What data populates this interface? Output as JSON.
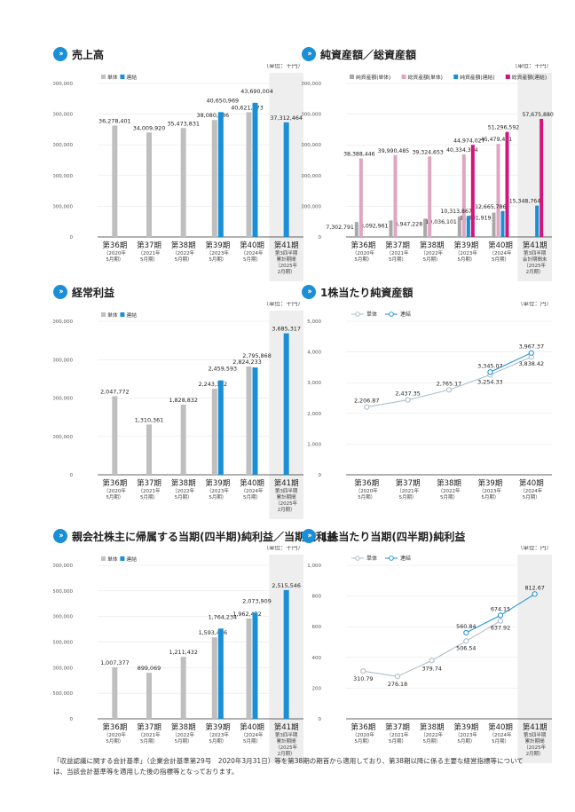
{
  "colors": {
    "single": "#bfbfbf",
    "consol": "#1a8fd6",
    "netassets_single": "#a8a8a8",
    "totalassets_single": "#e0a6c0",
    "netassets_consol": "#1a8fd6",
    "totalassets_consol": "#d4147a",
    "shade": "#eeeeee",
    "line": "#a7b9c6"
  },
  "footnote": "「収益認識に関する会計基準」（企業会計基準第29号　2020年3月31日）等を第38期の期首から適用しており、第38期以降に係る主要な経営指標等については、当該会計基準等を適用した後の指標等となっております。",
  "periods": [
    {
      "name": "第36期",
      "year": "（2020年",
      "month": "5月期）"
    },
    {
      "name": "第37期",
      "year": "（2021年",
      "month": "5月期）"
    },
    {
      "name": "第38期",
      "year": "（2022年",
      "month": "5月期）"
    },
    {
      "name": "第39期",
      "year": "（2023年",
      "month": "5月期）"
    },
    {
      "name": "第40期",
      "year": "（2024年",
      "month": "5月期）"
    }
  ],
  "extra_period_cumulative": {
    "name": "第41期",
    "lines": [
      "第3四半期",
      "累計期間",
      "（2025年",
      "2月期）"
    ]
  },
  "extra_period_end": {
    "name": "第41期",
    "lines": [
      "第3四半期",
      "会計期間末",
      "（2025年",
      "2月期）"
    ]
  },
  "chart_data": [
    {
      "id": "sales",
      "type": "bar",
      "title": "売上高",
      "unit": "（単位：千円）",
      "categories": [
        "第36期",
        "第37期",
        "第38期",
        "第39期",
        "第40期",
        "第41期"
      ],
      "yticks": [
        "50,000,000",
        "40,000,000",
        "30,000,000",
        "20,000,000",
        "10,000,000",
        "0"
      ],
      "ylim": [
        0,
        50000000
      ],
      "legend": [
        "単体",
        "連結"
      ],
      "series": [
        {
          "name": "単体",
          "values": [
            36278401,
            34009920,
            35473831,
            38080136,
            40621473,
            null
          ],
          "labels": [
            "36,278,401",
            "34,009,920",
            "35,473,831",
            "38,080,136",
            "40,621,473",
            ""
          ]
        },
        {
          "name": "連結",
          "values": [
            null,
            null,
            null,
            40650969,
            43690004,
            37312464
          ],
          "labels": [
            "",
            "",
            "",
            "40,650,969",
            "43,690,004",
            "37,312,464"
          ]
        }
      ]
    },
    {
      "id": "assets",
      "type": "bar",
      "title": "純資産額／総資産額",
      "unit": "（単位：千円）",
      "categories": [
        "第36期",
        "第37期",
        "第38期",
        "第39期",
        "第40期",
        "第41期"
      ],
      "yticks": [
        "75,000,000",
        "60,000,000",
        "45,000,000",
        "30,000,000",
        "15,000,000",
        "0"
      ],
      "ylim": [
        0,
        75000000
      ],
      "legend": [
        "純資産額(単体)",
        "総資産額(単体)",
        "純資産額(連結)",
        "総資産額(連結)"
      ],
      "series": [
        {
          "name": "純資産額(単体)",
          "values": [
            7302791,
            8092961,
            8947228,
            10036101,
            11901919,
            null
          ],
          "labels": [
            "7,302,791",
            "8,092,961",
            "8,947,228",
            "10,036,101",
            "11,901,919",
            ""
          ]
        },
        {
          "name": "総資産額(単体)",
          "values": [
            38388446,
            39990485,
            39324653,
            40334324,
            45479461,
            null
          ],
          "labels": [
            "38,388,446",
            "39,990,485",
            "39,324,653",
            "40,334,324",
            "45,479,461",
            ""
          ]
        },
        {
          "name": "純資産額(連結)",
          "values": [
            null,
            null,
            null,
            10313867,
            12665786,
            15348764
          ],
          "labels": [
            "",
            "",
            "",
            "10,313,867",
            "12,665,786",
            "15,348,764"
          ]
        },
        {
          "name": "総資産額(連結)",
          "values": [
            null,
            null,
            null,
            44974027,
            51296592,
            57675880
          ],
          "labels": [
            "",
            "",
            "",
            "44,974,027",
            "51,296,592",
            "57,675,880"
          ]
        }
      ]
    },
    {
      "id": "ordinary",
      "type": "bar",
      "title": "経常利益",
      "unit": "（単位：千円）",
      "categories": [
        "第36期",
        "第37期",
        "第38期",
        "第39期",
        "第40期",
        "第41期"
      ],
      "yticks": [
        "4,000,000",
        "3,000,000",
        "2,000,000",
        "1,000,000",
        "0"
      ],
      "ylim": [
        0,
        4000000
      ],
      "legend": [
        "単体",
        "連結"
      ],
      "series": [
        {
          "name": "単体",
          "values": [
            2047772,
            1310361,
            1828832,
            2243132,
            2824233,
            null
          ],
          "labels": [
            "2,047,772",
            "1,310,361",
            "1,828,832",
            "2,243,132",
            "2,824,233",
            ""
          ]
        },
        {
          "name": "連結",
          "values": [
            null,
            null,
            null,
            2459593,
            2795868,
            3685317
          ],
          "labels": [
            "",
            "",
            "",
            "2,459,593",
            "2,795,868",
            "3,685,317"
          ]
        }
      ]
    },
    {
      "id": "bps",
      "type": "line",
      "title": "1株当たり純資産額",
      "unit": "（単位：円）",
      "categories": [
        "第36期",
        "第37期",
        "第38期",
        "第39期",
        "第40期"
      ],
      "yticks": [
        "5,000",
        "4,000",
        "3,000",
        "2,000",
        "1,000",
        "0"
      ],
      "ylim": [
        0,
        5000
      ],
      "legend": [
        "単体",
        "連結"
      ],
      "series": [
        {
          "name": "単体",
          "values": [
            2206.87,
            2437.35,
            2765.17,
            3254.33,
            3838.42
          ],
          "labels": [
            "2,206.87",
            "2,437.35",
            "2,765.17",
            "3,254.33",
            "3,838.42"
          ]
        },
        {
          "name": "連結",
          "values": [
            null,
            null,
            null,
            3345.07,
            3967.37
          ],
          "labels": [
            "",
            "",
            "",
            "3,345.07",
            "3,967.37"
          ]
        }
      ]
    },
    {
      "id": "netincome",
      "type": "bar",
      "title": "親会社株主に帰属する当期(四半期)純利益／当期純利益",
      "unit": "（単位：千円）",
      "categories": [
        "第36期",
        "第37期",
        "第38期",
        "第39期",
        "第40期",
        "第41期"
      ],
      "yticks": [
        "3,000,000",
        "2,500,000",
        "2,000,000",
        "1,500,000",
        "1,000,000",
        "500,000",
        "0"
      ],
      "ylim": [
        0,
        3000000
      ],
      "legend": [
        "単体",
        "連結"
      ],
      "series": [
        {
          "name": "単体",
          "values": [
            1007377,
            899069,
            1211432,
            1593436,
            1962452,
            null
          ],
          "labels": [
            "1,007,377",
            "899,069",
            "1,211,432",
            "1,593,436",
            "1,962,452",
            ""
          ]
        },
        {
          "name": "連結",
          "values": [
            null,
            null,
            null,
            1764234,
            2073909,
            2515546
          ],
          "labels": [
            "",
            "",
            "",
            "1,764,234",
            "2,073,909",
            "2,515,546"
          ]
        }
      ]
    },
    {
      "id": "eps",
      "type": "line",
      "title": "1株当たり当期(四半期)純利益",
      "unit": "（単位：円）",
      "categories": [
        "第36期",
        "第37期",
        "第38期",
        "第39期",
        "第40期",
        "第41期"
      ],
      "yticks": [
        "1,000",
        "800",
        "600",
        "400",
        "200",
        "0"
      ],
      "ylim": [
        0,
        1000
      ],
      "legend": [
        "単体",
        "連結"
      ],
      "series": [
        {
          "name": "単体",
          "values": [
            310.79,
            276.18,
            379.74,
            506.54,
            637.92,
            null
          ],
          "labels": [
            "310.79",
            "276.18",
            "379.74",
            "506.54",
            "637.92",
            ""
          ]
        },
        {
          "name": "連結",
          "values": [
            null,
            null,
            null,
            560.84,
            674.15,
            812.67
          ],
          "labels": [
            "",
            "",
            "",
            "560.84",
            "674.15",
            "812.67"
          ]
        }
      ]
    }
  ]
}
